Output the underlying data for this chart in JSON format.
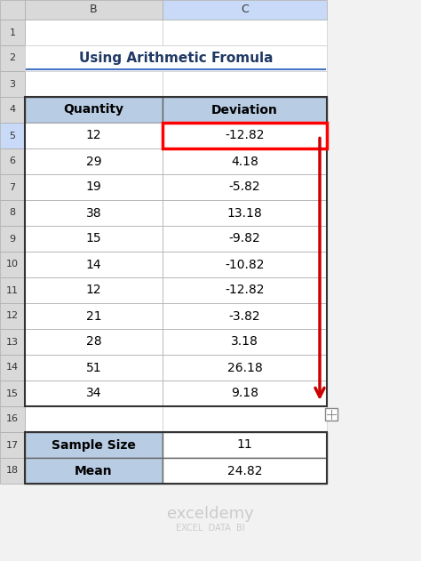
{
  "title": "Using Arithmetic Fromula",
  "col_headers": [
    "Quantity",
    "Deviation"
  ],
  "quantities": [
    12,
    29,
    19,
    38,
    15,
    14,
    12,
    21,
    28,
    51,
    34
  ],
  "deviations": [
    -12.82,
    4.18,
    -5.82,
    13.18,
    -9.82,
    -10.82,
    -12.82,
    -3.82,
    3.18,
    26.18,
    9.18
  ],
  "summary_labels": [
    "Sample Size",
    "Mean"
  ],
  "summary_values": [
    "11",
    "24.82"
  ],
  "header_bg": "#b8cce4",
  "cell_bg": "#ffffff",
  "title_color": "#1f3864",
  "red_border_color": "#ff0000",
  "arrow_color": "#cc0000",
  "summary_label_bg": "#b8cce4",
  "bg_color": "#f2f2f2",
  "excel_header_bg": "#d9d9d9",
  "selected_header_bg": "#c9daf8"
}
